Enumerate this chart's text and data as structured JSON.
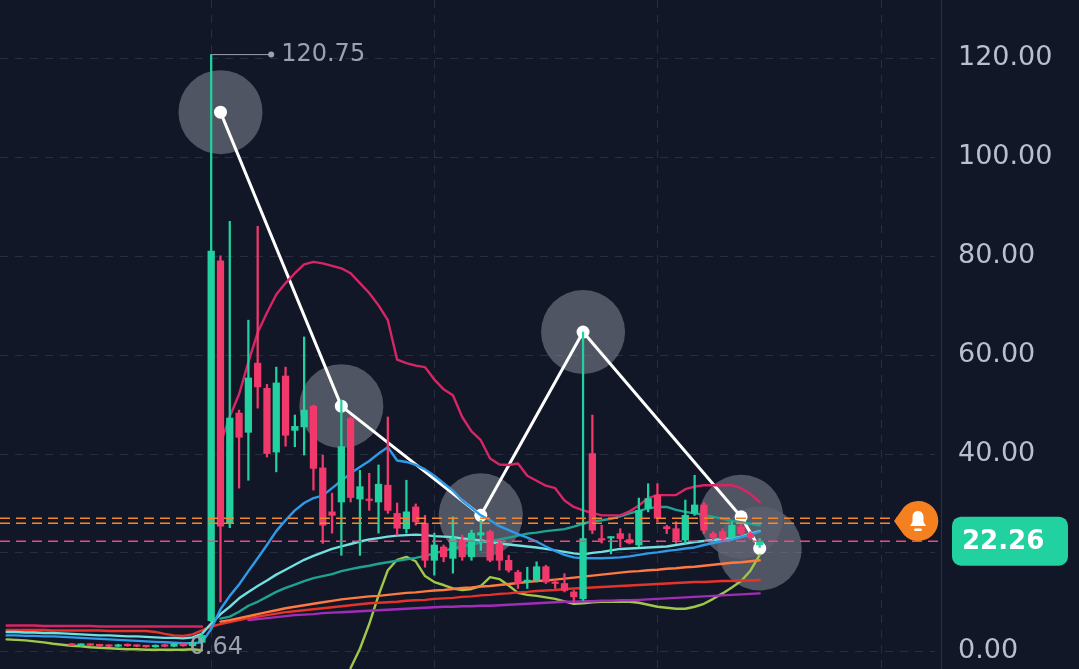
{
  "chart_data": {
    "type": "candlestick",
    "categories": [
      null,
      null,
      null,
      null,
      null,
      null,
      null,
      null,
      null,
      null,
      null,
      null,
      null,
      null,
      null,
      null,
      null,
      null,
      null,
      null,
      null,
      null,
      null,
      null,
      null,
      null,
      null,
      null,
      null,
      null,
      null,
      null,
      null,
      null,
      null,
      null,
      null,
      null,
      null,
      null,
      null,
      null,
      null,
      null,
      null,
      null,
      null,
      null,
      null,
      null,
      null,
      null,
      null,
      null,
      null,
      null,
      null,
      null,
      null,
      null,
      null,
      null,
      null,
      null,
      null,
      null,
      null,
      null,
      null,
      null,
      null,
      null,
      null,
      null,
      null,
      null,
      null,
      null,
      null,
      null,
      null,
      null,
      null,
      null,
      null,
      null,
      null,
      null,
      null,
      null,
      null,
      null,
      null,
      null,
      null,
      null,
      null,
      null,
      null,
      null,
      null
    ],
    "ohlc": [
      null,
      null,
      null,
      null,
      null,
      null,
      null,
      [
        1.4,
        1.6,
        1.1,
        1.2
      ],
      [
        1.2,
        1.5,
        1.0,
        1.3
      ],
      [
        1.3,
        1.5,
        1.1,
        1.2
      ],
      [
        1.2,
        1.4,
        0.9,
        1.1
      ],
      [
        1.1,
        1.3,
        0.9,
        1.0
      ],
      [
        1.0,
        1.4,
        0.9,
        1.3
      ],
      [
        1.3,
        1.5,
        1.0,
        1.1
      ],
      [
        1.1,
        1.3,
        0.9,
        1.0
      ],
      [
        1.0,
        1.2,
        0.8,
        0.9
      ],
      [
        0.9,
        1.3,
        0.8,
        1.2
      ],
      [
        1.2,
        1.4,
        0.9,
        1.0
      ],
      [
        1.0,
        1.6,
        0.9,
        1.5
      ],
      [
        1.5,
        1.7,
        1.0,
        1.1
      ],
      [
        1.1,
        2.0,
        0.64,
        1.8
      ],
      [
        1.8,
        3.6,
        1.5,
        3.2
      ],
      [
        6.2,
        120.75,
        6.0,
        81
      ],
      [
        79,
        80,
        10,
        25.3
      ],
      [
        26,
        87,
        25,
        47.2
      ],
      [
        48.2,
        48.8,
        33,
        43.3
      ],
      [
        44.3,
        67,
        34.6,
        55.3
      ],
      [
        58.3,
        86,
        49.2,
        53.5
      ],
      [
        53.2,
        54,
        39.3,
        40
      ],
      [
        40.3,
        57.5,
        36.3,
        54.3
      ],
      [
        55.7,
        57.5,
        41.5,
        43.7
      ],
      [
        44.7,
        47.8,
        41.4,
        45.5
      ],
      [
        45.4,
        63.6,
        39.7,
        48.8
      ],
      [
        49.6,
        49.8,
        32.6,
        37
      ],
      [
        37.1,
        39.7,
        21.8,
        25.5
      ],
      [
        28.2,
        32,
        23.9,
        27.5
      ],
      [
        30.2,
        50.8,
        19.4,
        41.4
      ],
      [
        47.1,
        47.4,
        30.2,
        31.1
      ],
      [
        30.8,
        36.6,
        19.4,
        33.3
      ],
      [
        30.7,
        36,
        28.5,
        30.5
      ],
      [
        30.2,
        37.7,
        23.9,
        33.8
      ],
      [
        33.6,
        47.4,
        27.9,
        28.5
      ],
      [
        27.9,
        30,
        23.5,
        24.9
      ],
      [
        24.8,
        34.6,
        23.9,
        28.2
      ],
      [
        29.2,
        29.8,
        25.5,
        26.2
      ],
      [
        25.9,
        27.5,
        17,
        18.4
      ],
      [
        18.4,
        23.9,
        15.4,
        21.5
      ],
      [
        21.1,
        21.5,
        18.1,
        19.1
      ],
      [
        18.8,
        27.2,
        15.8,
        22.9
      ],
      [
        22.5,
        23.5,
        18.4,
        19.1
      ],
      [
        19.1,
        24.5,
        18.4,
        23.9
      ],
      [
        23.5,
        26.5,
        20.4,
        24
      ],
      [
        24.2,
        24.5,
        18.1,
        18.4
      ],
      [
        21.8,
        22.5,
        16.4,
        18.4
      ],
      [
        18.4,
        19.4,
        16,
        16.4
      ],
      [
        16,
        16.4,
        12.7,
        13.7
      ],
      [
        14,
        17,
        12.7,
        14.4
      ],
      [
        14.4,
        18.1,
        14,
        17.1
      ],
      [
        17.1,
        17.4,
        13.7,
        14
      ],
      [
        14,
        14.4,
        12.7,
        13.7
      ],
      [
        13.7,
        15.7,
        12,
        12.3
      ],
      [
        12,
        12.3,
        10,
        11
      ],
      [
        10.6,
        64.6,
        10.3,
        22.8
      ],
      [
        40,
        47.8,
        23.8,
        24.5
      ],
      [
        22.8,
        25.5,
        21.9,
        22.5
      ],
      [
        22.9,
        23.2,
        19.7,
        23.1
      ],
      [
        23.8,
        24.8,
        21.1,
        22.8
      ],
      [
        22.6,
        23.8,
        21.7,
        21.9
      ],
      [
        21.5,
        31,
        21.1,
        28.5
      ],
      [
        28.9,
        33.9,
        28.2,
        30.9
      ],
      [
        31.6,
        33.9,
        26.2,
        26.9
      ],
      [
        25.2,
        25.5,
        23.8,
        24.8
      ],
      [
        24.8,
        26.2,
        21.8,
        22.5
      ],
      [
        22.5,
        30.6,
        21.8,
        27.5
      ],
      [
        27.9,
        35.6,
        27.5,
        29.6
      ],
      [
        29.6,
        30.1,
        23.8,
        24.5
      ],
      [
        23.8,
        24.2,
        22.6,
        23
      ],
      [
        24.2,
        24.8,
        22.5,
        22.8
      ],
      [
        23.1,
        26.2,
        22.6,
        25.5
      ],
      [
        25.2,
        25.8,
        23.5,
        23.8
      ],
      [
        23.8,
        24.2,
        22.6,
        23
      ],
      [
        21.5,
        22.8,
        21,
        22.26
      ],
      null,
      null,
      null,
      null,
      null,
      null,
      null,
      null,
      null,
      null,
      null,
      null,
      null,
      null,
      null,
      null,
      null,
      null,
      null
    ],
    "colors": [
      null,
      null,
      null,
      null,
      null,
      null,
      null,
      "#f2396b",
      "#22d1a0",
      "#f2396b",
      "#f2396b",
      "#f2396b",
      "#22d1a0",
      "#f2396b",
      "#f2396b",
      "#f2396b",
      "#22d1a0",
      "#f2396b",
      "#22d1a0",
      "#f2396b",
      "#22d1a0",
      "#22d1a0",
      "#22d1a0",
      "#f2396b",
      "#22d1a0",
      "#f2396b",
      "#22d1a0",
      "#f2396b",
      "#f2396b",
      "#22d1a0",
      "#f2396b",
      "#22d1a0",
      "#22d1a0",
      "#f2396b",
      "#f2396b",
      "#f2396b",
      "#22d1a0",
      "#f2396b",
      "#22d1a0",
      "#f2396b",
      "#22d1a0",
      "#f2396b",
      "#f2396b",
      "#22d1a0",
      "#f2396b",
      "#f2396b",
      "#22d1a0",
      "#f2396b",
      "#22d1a0",
      "#f2396b",
      "#22d1a0",
      "#22d1a0",
      "#f2396b",
      "#f2396b",
      "#f2396b",
      "#f2396b",
      "#22d1a0",
      "#22d1a0",
      "#f2396b",
      "#f2396b",
      "#f2396b",
      "#f2396b",
      "#22d1a0",
      "#f2396b",
      "#f2396b",
      "#22d1a0",
      "#f2396b",
      "#f2396b",
      "#22d1a0",
      "#22d1a0",
      "#f2396b",
      "#f2396b",
      "#f2396b",
      "#22d1a0",
      "#22d1a0",
      "#f2396b",
      "#f2396b",
      "#f2396b",
      "#22d1a0",
      "#f2396b",
      "#f2396b",
      "#22d1a0",
      null,
      null,
      null,
      null,
      null,
      null,
      null,
      null,
      null,
      null,
      null,
      null,
      null,
      null,
      null,
      null,
      null,
      null,
      null
    ],
    "series": [
      {
        "type": "line",
        "color": "#d82566",
        "values": [
          5.2,
          5.2,
          5.2,
          5.2,
          5.1,
          5.1,
          5.1,
          5.1,
          5.1,
          5.1,
          5.0,
          5.0,
          5.0,
          5.0,
          5.0,
          5.0,
          5.0,
          5.0,
          5.0,
          5.0,
          5.0,
          5.0,
          null,
          42,
          47.5,
          52,
          58.5,
          64.5,
          68.5,
          72.2,
          74.5,
          76.5,
          78.3,
          78.8,
          78.5,
          78,
          77.5,
          76.5,
          74.5,
          72.5,
          70,
          67,
          59,
          58.3,
          57.8,
          57.5,
          55,
          53,
          51.8,
          47.4,
          44.5,
          42.7,
          39,
          37.8,
          37.7,
          38,
          35.5,
          34.5,
          33.5,
          33,
          30.5,
          29.2,
          28.5,
          28,
          27.5,
          27.5,
          27.5,
          28.3,
          29.5,
          31,
          31.6,
          31.6,
          31.6,
          32.8,
          33.3,
          33.6,
          33.6,
          33.6,
          33.6,
          33,
          31.8,
          30.2,
          null,
          null,
          null,
          null,
          null,
          null,
          null,
          null,
          null,
          null,
          null,
          null,
          null,
          null,
          null,
          null,
          null,
          null,
          null
        ]
      },
      {
        "type": "line",
        "color": "#2f9be8",
        "values": [
          3.2,
          3.2,
          3.1,
          3.1,
          3.0,
          3.0,
          2.9,
          2.8,
          2.7,
          2.6,
          2.5,
          2.4,
          2.3,
          2.2,
          2.1,
          2.0,
          1.9,
          1.8,
          1.7,
          1.6,
          1.6,
          1.8,
          4.5,
          8.5,
          11.2,
          13.5,
          16.2,
          18.8,
          21.5,
          24.3,
          26.5,
          28.5,
          30,
          31,
          31.5,
          33,
          34.5,
          36,
          37.3,
          38.5,
          40,
          41.3,
          38.6,
          38.3,
          37.7,
          36.8,
          35.5,
          34,
          32.5,
          30.5,
          29,
          27.5,
          26.5,
          25.3,
          24.5,
          23.7,
          23,
          22.2,
          21.2,
          20.3,
          19.5,
          19,
          18.8,
          18.8,
          18.8,
          18.9,
          19,
          19.2,
          19.5,
          19.8,
          20,
          20.3,
          20.5,
          20.8,
          21,
          21.5,
          21.9,
          22.3,
          22.6,
          23.1,
          23.6,
          24.2,
          null,
          null,
          null,
          null,
          null,
          null,
          null,
          null,
          null,
          null,
          null,
          null,
          null,
          null,
          null,
          null,
          null,
          null,
          null
        ]
      },
      {
        "type": "line",
        "color": "#72dfe0",
        "values": [
          3.9,
          3.9,
          3.8,
          3.8,
          3.7,
          3.7,
          3.6,
          3.5,
          3.4,
          3.3,
          3.2,
          3.2,
          3.1,
          3.0,
          3.0,
          2.9,
          2.8,
          2.7,
          2.7,
          2.6,
          2.8,
          3.5,
          5.6,
          7.5,
          9,
          10.7,
          12,
          13.2,
          14.3,
          15.5,
          16.5,
          17.5,
          18.5,
          19.3,
          20,
          20.7,
          21.2,
          21.7,
          22.2,
          22.6,
          22.9,
          23.2,
          23.4,
          23.5,
          23.6,
          23.5,
          23.3,
          23.2,
          23.1,
          22.8,
          22.6,
          22.4,
          22.1,
          21.8,
          21.6,
          21.4,
          21.2,
          21,
          20.7,
          20.4,
          20.1,
          19.8,
          19.6,
          19.9,
          20.1,
          20.4,
          20.7,
          20.8,
          20.9,
          21,
          21.1,
          21.2,
          21.5,
          21.8,
          22.1,
          22.3,
          22.5,
          22.7,
          22.8,
          23.2,
          23.8,
          24.3,
          null,
          null,
          null,
          null,
          null,
          null,
          null,
          null,
          null,
          null,
          null,
          null,
          null,
          null,
          null,
          null,
          null,
          null,
          null
        ]
      },
      {
        "type": "line",
        "color": "#1ea392",
        "values": [
          null,
          null,
          null,
          null,
          null,
          null,
          null,
          null,
          null,
          null,
          null,
          null,
          null,
          null,
          null,
          null,
          null,
          null,
          null,
          null,
          null,
          null,
          null,
          6.6,
          7,
          8,
          9.2,
          10,
          11,
          12,
          12.8,
          13.5,
          14.2,
          14.8,
          15.2,
          15.6,
          16.2,
          16.6,
          17,
          17.3,
          17.7,
          18,
          18.3,
          18.6,
          18.9,
          19.3,
          19.8,
          20.3,
          20.8,
          21.2,
          21.6,
          22,
          22.3,
          22.6,
          23,
          23.4,
          23.8,
          24,
          24.3,
          24.5,
          24.7,
          25.2,
          25.8,
          26.3,
          26.5,
          26.8,
          27.3,
          27.9,
          28.4,
          28.9,
          29.2,
          29.2,
          28.6,
          28.2,
          27.9,
          27.6,
          27.2,
          26.8,
          26.4,
          26.1,
          25.8,
          25.5,
          null,
          null,
          null,
          null,
          null,
          null,
          null,
          null,
          null,
          null,
          null,
          null,
          null,
          null,
          null,
          null,
          null,
          null,
          null
        ]
      },
      {
        "type": "line",
        "color": "#ff7a40",
        "values": [
          null,
          null,
          null,
          null,
          null,
          null,
          null,
          null,
          null,
          null,
          null,
          null,
          null,
          null,
          null,
          null,
          null,
          null,
          null,
          null,
          null,
          null,
          null,
          6.0,
          6.3,
          6.7,
          7.1,
          7.5,
          7.9,
          8.3,
          8.7,
          9,
          9.3,
          9.6,
          9.9,
          10.2,
          10.5,
          10.7,
          10.9,
          11.1,
          11.2,
          11.4,
          11.6,
          11.8,
          11.9,
          12.1,
          12.3,
          12.4,
          12.6,
          12.8,
          12.9,
          13.1,
          13.2,
          13.4,
          13.6,
          13.8,
          14,
          14.2,
          14.3,
          14.5,
          14.7,
          14.9,
          15.1,
          15.3,
          15.5,
          15.7,
          15.9,
          16.1,
          16.2,
          16.4,
          16.5,
          16.7,
          16.8,
          17,
          17.1,
          17.3,
          17.5,
          17.7,
          17.9,
          18,
          18.2,
          18.4,
          null,
          null,
          null,
          null,
          null,
          null,
          null,
          null,
          null,
          null,
          null,
          null,
          null,
          null,
          null,
          null,
          null,
          null,
          null
        ]
      },
      {
        "type": "line",
        "color": "#e5332a",
        "values": [
          4.3,
          4.3,
          4.3,
          4.3,
          4.3,
          4.2,
          4.2,
          4.2,
          4.2,
          4.2,
          4.2,
          4.1,
          4.1,
          4.1,
          4.1,
          4.1,
          3.9,
          3.5,
          3.2,
          3.1,
          3.4,
          4.2,
          5,
          5.5,
          5.9,
          6.3,
          6.7,
          7,
          7.3,
          7.6,
          7.9,
          8.1,
          8.3,
          8.5,
          8.7,
          8.9,
          9.1,
          9.3,
          9.5,
          9.7,
          9.8,
          9.9,
          10,
          10.2,
          10.3,
          10.4,
          10.6,
          10.7,
          10.8,
          11,
          11.1,
          11.3,
          11.4,
          11.6,
          11.7,
          11.9,
          12,
          12.2,
          12.3,
          12.4,
          12.6,
          12.7,
          12.8,
          12.9,
          13,
          13.1,
          13.2,
          13.3,
          13.4,
          13.5,
          13.6,
          13.7,
          13.8,
          13.9,
          14,
          14,
          14.1,
          14.2,
          14.2,
          14.3,
          14.3,
          14.4,
          null,
          null,
          null,
          null,
          null,
          null,
          null,
          null,
          null,
          null,
          null,
          null,
          null,
          null,
          null,
          null,
          null,
          null,
          null
        ]
      },
      {
        "type": "line",
        "color": "#a02cb8",
        "values": [
          null,
          null,
          null,
          null,
          null,
          null,
          null,
          null,
          null,
          null,
          null,
          null,
          null,
          null,
          null,
          null,
          null,
          null,
          null,
          null,
          null,
          null,
          null,
          null,
          null,
          null,
          6.3,
          6.5,
          6.7,
          6.9,
          7.1,
          7.3,
          7.4,
          7.5,
          7.7,
          7.8,
          7.9,
          8,
          8.1,
          8.2,
          8.3,
          8.4,
          8.5,
          8.6,
          8.7,
          8.8,
          8.9,
          9,
          9,
          9.1,
          9.1,
          9.2,
          9.2,
          9.3,
          9.4,
          9.5,
          9.6,
          9.7,
          9.8,
          9.9,
          10,
          10,
          10.1,
          10.1,
          10.2,
          10.2,
          10.3,
          10.3,
          10.4,
          10.5,
          10.6,
          10.7,
          10.8,
          10.9,
          11,
          11.1,
          11.2,
          11.3,
          11.4,
          11.5,
          11.6,
          11.7,
          null,
          null,
          null,
          null,
          null,
          null,
          null,
          null,
          null,
          null,
          null,
          null,
          null,
          null,
          null,
          null,
          null,
          null,
          null
        ]
      },
      {
        "type": "line",
        "color": "#9fc84a",
        "values": [
          2.4,
          2.3,
          2.2,
          2.0,
          1.8,
          1.5,
          1.3,
          1.1,
          1.0,
          0.8,
          0.7,
          0.6,
          0.5,
          0.4,
          0.4,
          0.3,
          0.3,
          0.3,
          0.3,
          0.3,
          0.4,
          0.2,
          null,
          null,
          null,
          null,
          null,
          null,
          null,
          null,
          null,
          null,
          null,
          null,
          null,
          null,
          null,
          -3.4,
          0.5,
          5.5,
          11.3,
          16.4,
          18.5,
          19.1,
          18.2,
          15.2,
          14,
          13.4,
          12.7,
          12.4,
          12.6,
          13.2,
          15,
          14.6,
          13.3,
          11.8,
          11.4,
          11.2,
          10.9,
          10.6,
          10.1,
          9.6,
          9.7,
          9.9,
          10,
          10,
          10,
          10,
          9.8,
          9.4,
          9,
          8.8,
          8.6,
          8.6,
          9,
          9.6,
          10.6,
          11.7,
          12.9,
          14.2,
          16.3,
          19.5,
          null,
          null,
          null,
          null,
          null,
          null,
          null,
          null,
          null,
          null,
          null,
          null,
          null,
          null,
          null,
          null,
          null,
          null,
          null
        ]
      },
      {
        "type": "line",
        "color": "#ffffff",
        "marker": "circle",
        "values": [
          null,
          null,
          null,
          null,
          null,
          null,
          null,
          null,
          null,
          null,
          null,
          null,
          null,
          null,
          null,
          null,
          null,
          null,
          null,
          null,
          null,
          null,
          null,
          109.1,
          null,
          null,
          null,
          null,
          null,
          null,
          null,
          null,
          null,
          null,
          null,
          null,
          49.6,
          null,
          null,
          null,
          null,
          null,
          null,
          null,
          null,
          null,
          null,
          null,
          null,
          null,
          null,
          27.5,
          null,
          null,
          null,
          null,
          null,
          null,
          null,
          null,
          null,
          null,
          64.6,
          null,
          null,
          null,
          null,
          null,
          null,
          null,
          null,
          null,
          null,
          null,
          null,
          null,
          null,
          null,
          null,
          27.2,
          null,
          20.8,
          null,
          null,
          null,
          null,
          null,
          null,
          null,
          null,
          null,
          null,
          null,
          null,
          null,
          null,
          null,
          null,
          null,
          null,
          null
        ]
      }
    ],
    "ylim": [
      -3.6,
      131.8
    ],
    "yticks": [
      {
        "value": 0,
        "label": "0.00"
      },
      {
        "value": 20,
        "label": null
      },
      {
        "value": 40,
        "label": "40.00"
      },
      {
        "value": 60,
        "label": "60.00"
      },
      {
        "value": 80,
        "label": "80.00"
      },
      {
        "value": 100,
        "label": "100.00"
      },
      {
        "value": 120,
        "label": "120.00"
      }
    ],
    "ref_lines": [
      {
        "axis": "y",
        "value": 26.9,
        "color": "#f5862b",
        "line_style": "dashed"
      },
      {
        "axis": "y",
        "value": 25.9,
        "color": "#f5862b",
        "line_style": "dashed"
      },
      {
        "axis": "y",
        "value": 22.26,
        "label": "22.26",
        "color": "#ee4a7d",
        "line_style": "dashed"
      }
    ],
    "annotations": [
      "120.75",
      "0.64"
    ],
    "grid": true,
    "tick_labels": "y"
  }
}
